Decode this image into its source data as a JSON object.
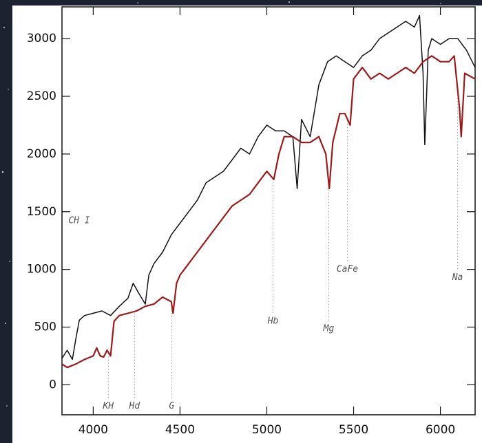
{
  "chart_data": {
    "type": "line",
    "xlim": [
      3820,
      6200
    ],
    "ylim": [
      -260,
      3275
    ],
    "xticks": [
      4000,
      4500,
      5000,
      5500,
      6000
    ],
    "yticks": [
      0,
      500,
      1000,
      1500,
      2000,
      2500,
      3000
    ],
    "series": [
      {
        "color": "#111111",
        "x": [
          3820,
          3850,
          3880,
          3900,
          3920,
          3950,
          4000,
          4050,
          4100,
          4150,
          4200,
          4230,
          4260,
          4300,
          4320,
          4350,
          4400,
          4450,
          4500,
          4550,
          4600,
          4650,
          4700,
          4750,
          4800,
          4850,
          4900,
          4950,
          5000,
          5050,
          5100,
          5150,
          5175,
          5200,
          5250,
          5300,
          5350,
          5400,
          5450,
          5500,
          5550,
          5600,
          5650,
          5700,
          5750,
          5800,
          5850,
          5880,
          5900,
          5910,
          5930,
          5950,
          6000,
          6050,
          6100,
          6150,
          6200
        ],
        "values": [
          230,
          300,
          220,
          400,
          560,
          600,
          620,
          640,
          600,
          680,
          750,
          880,
          800,
          700,
          950,
          1050,
          1150,
          1300,
          1400,
          1500,
          1600,
          1750,
          1800,
          1850,
          1950,
          2050,
          2000,
          2150,
          2250,
          2200,
          2200,
          2150,
          1700,
          2300,
          2150,
          2600,
          2800,
          2850,
          2800,
          2750,
          2850,
          2900,
          3000,
          3050,
          3100,
          3150,
          3100,
          3200,
          2700,
          2080,
          2900,
          3000,
          2950,
          3000,
          3000,
          2900,
          2750
        ]
      },
      {
        "color": "#9b1b1b",
        "x": [
          3820,
          3850,
          3900,
          3950,
          4000,
          4020,
          4040,
          4060,
          4080,
          4100,
          4120,
          4150,
          4200,
          4250,
          4300,
          4350,
          4400,
          4450,
          4460,
          4480,
          4500,
          4550,
          4600,
          4650,
          4700,
          4750,
          4800,
          4850,
          4900,
          4950,
          5000,
          5040,
          5070,
          5100,
          5150,
          5200,
          5250,
          5300,
          5340,
          5360,
          5380,
          5420,
          5450,
          5480,
          5500,
          5550,
          5600,
          5650,
          5700,
          5750,
          5800,
          5850,
          5900,
          5950,
          6000,
          6050,
          6080,
          6110,
          6120,
          6140,
          6200
        ],
        "values": [
          180,
          150,
          180,
          220,
          250,
          320,
          250,
          240,
          300,
          250,
          550,
          600,
          620,
          640,
          680,
          700,
          760,
          720,
          620,
          880,
          950,
          1050,
          1150,
          1250,
          1350,
          1450,
          1550,
          1600,
          1650,
          1750,
          1850,
          1780,
          2000,
          2150,
          2150,
          2100,
          2100,
          2150,
          2000,
          1700,
          2100,
          2350,
          2350,
          2250,
          2650,
          2750,
          2650,
          2700,
          2650,
          2700,
          2750,
          2700,
          2800,
          2850,
          2800,
          2800,
          2850,
          2400,
          2150,
          2700,
          2650
        ]
      }
    ],
    "annotations": [
      {
        "text": "CH I",
        "x": 3857,
        "y": 1420
      },
      {
        "text": "KH",
        "x": 4087,
        "y": -185
      },
      {
        "text": "Hd",
        "x": 4238,
        "y": -185
      },
      {
        "text": "G",
        "x": 4452,
        "y": -185
      },
      {
        "text": "Hb",
        "x": 5036,
        "y": 550
      },
      {
        "text": "Mg",
        "x": 5357,
        "y": 485
      },
      {
        "text": "CaFe",
        "x": 5464,
        "y": 1000
      },
      {
        "text": "Na",
        "x": 6099,
        "y": 930
      }
    ]
  }
}
